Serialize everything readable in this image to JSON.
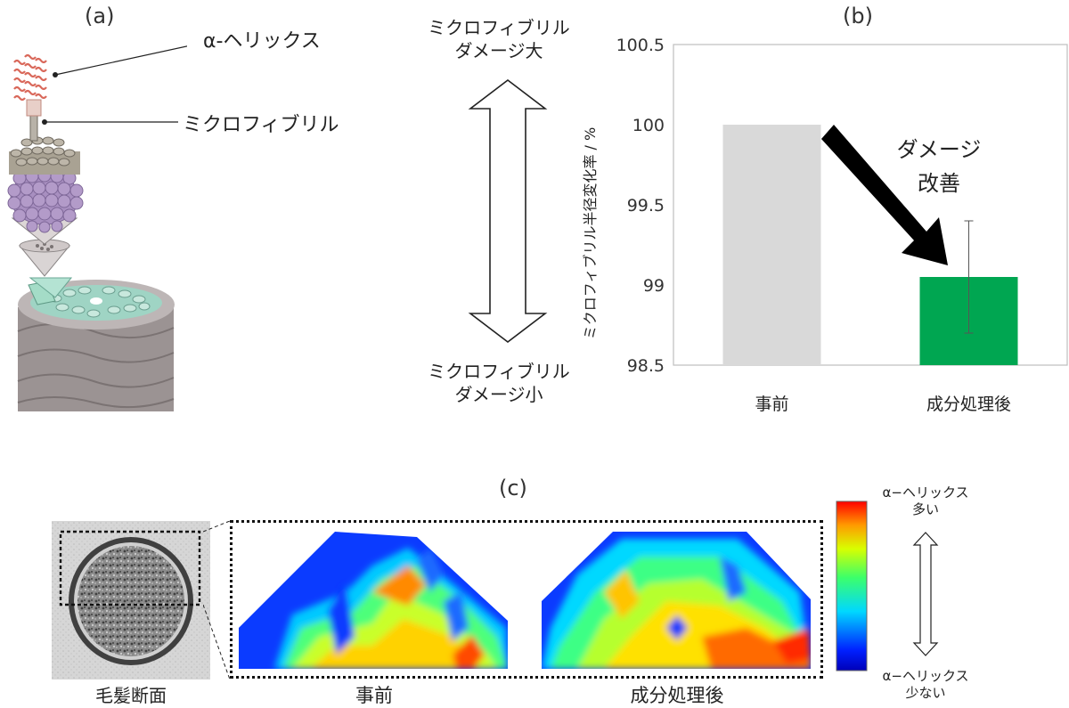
{
  "panel_a": {
    "label": "(a)",
    "callout_helix": "α-ヘリックス",
    "callout_microfibril": "ミクロフィブリル"
  },
  "scale_arrow": {
    "top_line1": "ミクロフィブリル",
    "top_line2": "ダメージ大",
    "bottom_line1": "ミクロフィブリル",
    "bottom_line2": "ダメージ小"
  },
  "panel_b": {
    "label": "(b)"
  },
  "chart_data": {
    "type": "bar",
    "categories": [
      "事前",
      "成分処理後"
    ],
    "values": [
      100.0,
      99.05
    ],
    "error": [
      0,
      0.35
    ],
    "colors": [
      "#d9d9d9",
      "#00a651"
    ],
    "title": "",
    "xlabel": "",
    "ylabel": "ミクロフィブリル半径変化率 / %",
    "ylim": [
      98.5,
      100.5
    ],
    "yticks": [
      98.5,
      99,
      99.5,
      100,
      100.5
    ],
    "ytick_labels": [
      "98.5",
      "99",
      "99.5",
      "100",
      "100.5"
    ],
    "annotation": {
      "line1": "ダメージ",
      "line2": "改善"
    },
    "grid": false
  },
  "panel_c": {
    "label": "(c)",
    "cross_section_caption": "毛髪断面",
    "map_before_caption": "事前",
    "map_after_caption": "成分処理後",
    "colorbar_top_line1": "α−ヘリックス",
    "colorbar_top_line2": "多い",
    "colorbar_bottom_line1": "α−ヘリックス",
    "colorbar_bottom_line2": "少ない"
  },
  "colors": {
    "bar_before": "#d9d9d9",
    "bar_after": "#00a651",
    "arrow": "#000000",
    "hair_cortex": "#b39bc9",
    "hair_cuticle": "#a8a0a0"
  }
}
